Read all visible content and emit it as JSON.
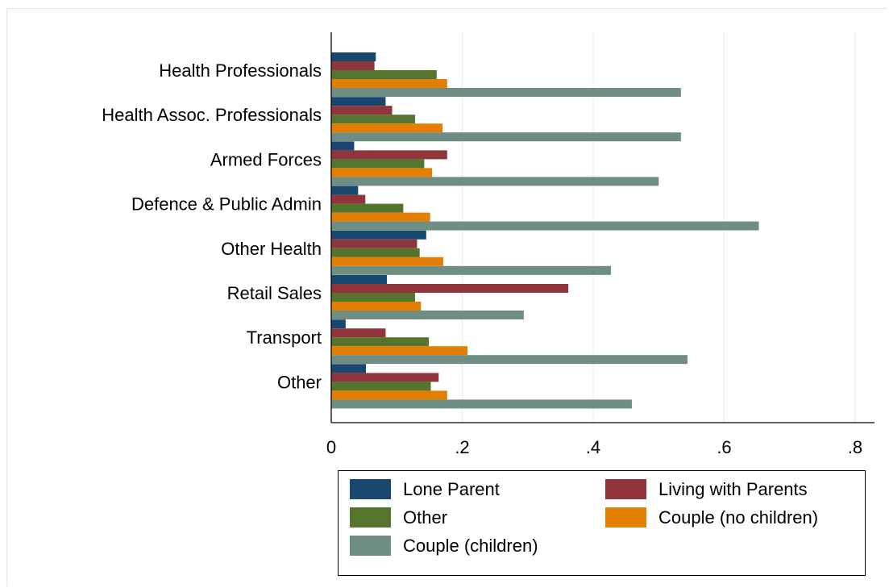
{
  "chart_data": {
    "type": "bar",
    "orientation": "horizontal",
    "categories": [
      "Health Professionals",
      "Health Assoc. Professionals",
      "Armed Forces",
      "Defence & Public Admin",
      "Other Health",
      "Retail Sales",
      "Transport",
      "Other"
    ],
    "series": [
      {
        "name": "Lone Parent",
        "color": "#1a476f",
        "values": [
          0.068,
          0.083,
          0.035,
          0.041,
          0.145,
          0.085,
          0.022,
          0.053
        ]
      },
      {
        "name": "Living with Parents",
        "color": "#90353b",
        "values": [
          0.066,
          0.093,
          0.177,
          0.052,
          0.131,
          0.362,
          0.083,
          0.164
        ]
      },
      {
        "name": "Other",
        "color": "#55752f",
        "values": [
          0.161,
          0.128,
          0.142,
          0.11,
          0.135,
          0.128,
          0.149,
          0.152
        ]
      },
      {
        "name": "Couple (no children)",
        "color": "#e37e00",
        "values": [
          0.177,
          0.17,
          0.154,
          0.151,
          0.171,
          0.137,
          0.208,
          0.177
        ]
      },
      {
        "name": "Couple (children)",
        "color": "#6e8e84",
        "values": [
          0.534,
          0.534,
          0.5,
          0.653,
          0.427,
          0.294,
          0.544,
          0.459
        ]
      }
    ],
    "xticks": [
      0,
      0.2,
      0.4,
      0.6,
      0.8
    ],
    "xtick_labels": [
      "0",
      ".2",
      ".4",
      ".6",
      ".8"
    ],
    "xlim": [
      0,
      0.8
    ],
    "grid": true,
    "legend_position": "bottom",
    "title": "",
    "xlabel": "",
    "ylabel": ""
  }
}
